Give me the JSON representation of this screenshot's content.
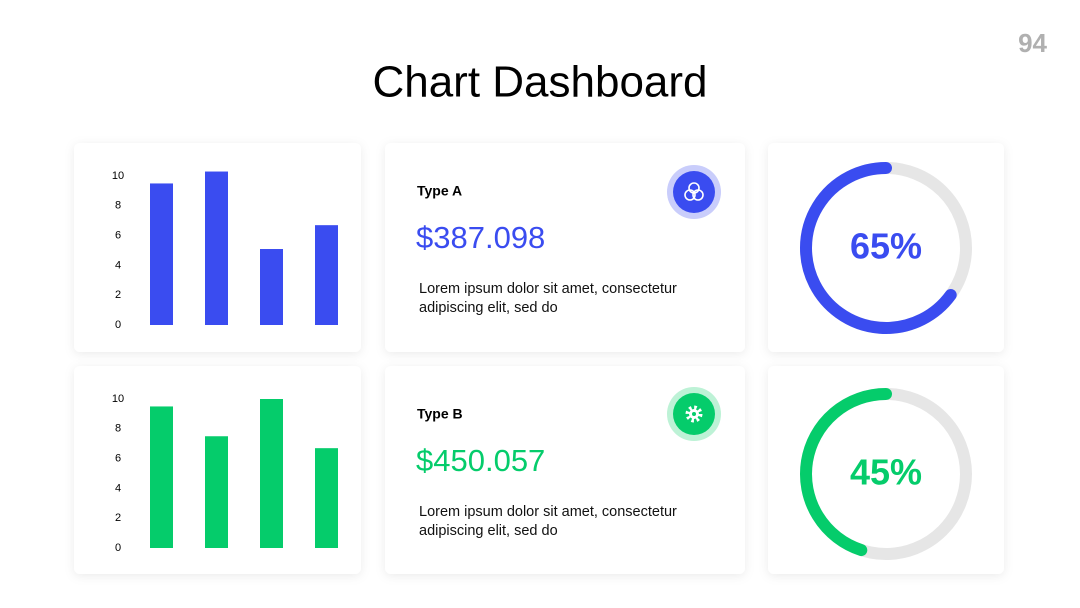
{
  "page_number": "94",
  "title": "Chart Dashboard",
  "chart_data": [
    {
      "type": "bar",
      "values": [
        9.5,
        10.3,
        5.1,
        6.7
      ],
      "color": "#3a4cf0",
      "ylim": [
        0,
        10.5
      ],
      "yticks": [
        0,
        2,
        4,
        6,
        8,
        10
      ]
    },
    {
      "type": "donut",
      "values": [
        65
      ],
      "value_labels": [
        "65%"
      ],
      "color": "#3a4cf0",
      "track_color": "#e6e6e6"
    },
    {
      "type": "bar",
      "values": [
        9.5,
        7.5,
        10,
        6.7
      ],
      "color": "#05cc6b",
      "ylim": [
        0,
        10.5
      ],
      "yticks": [
        0,
        2,
        4,
        6,
        8,
        10
      ]
    },
    {
      "type": "donut",
      "values": [
        45
      ],
      "value_labels": [
        "45%"
      ],
      "color": "#05cc6b",
      "track_color": "#e6e6e6"
    }
  ],
  "cards": [
    {
      "label": "Type A",
      "amount": "$387.098",
      "color": "#3a4cf0",
      "text": [
        "Lorem ipsum dolor sit amet, consectetur",
        "adipiscing elit, sed do"
      ]
    },
    {
      "label": "Type B",
      "amount": "$450.057",
      "color": "#05cc6b",
      "text": [
        "Lorem ipsum dolor sit amet, consectetur",
        "adipiscing elit, sed do"
      ]
    }
  ]
}
